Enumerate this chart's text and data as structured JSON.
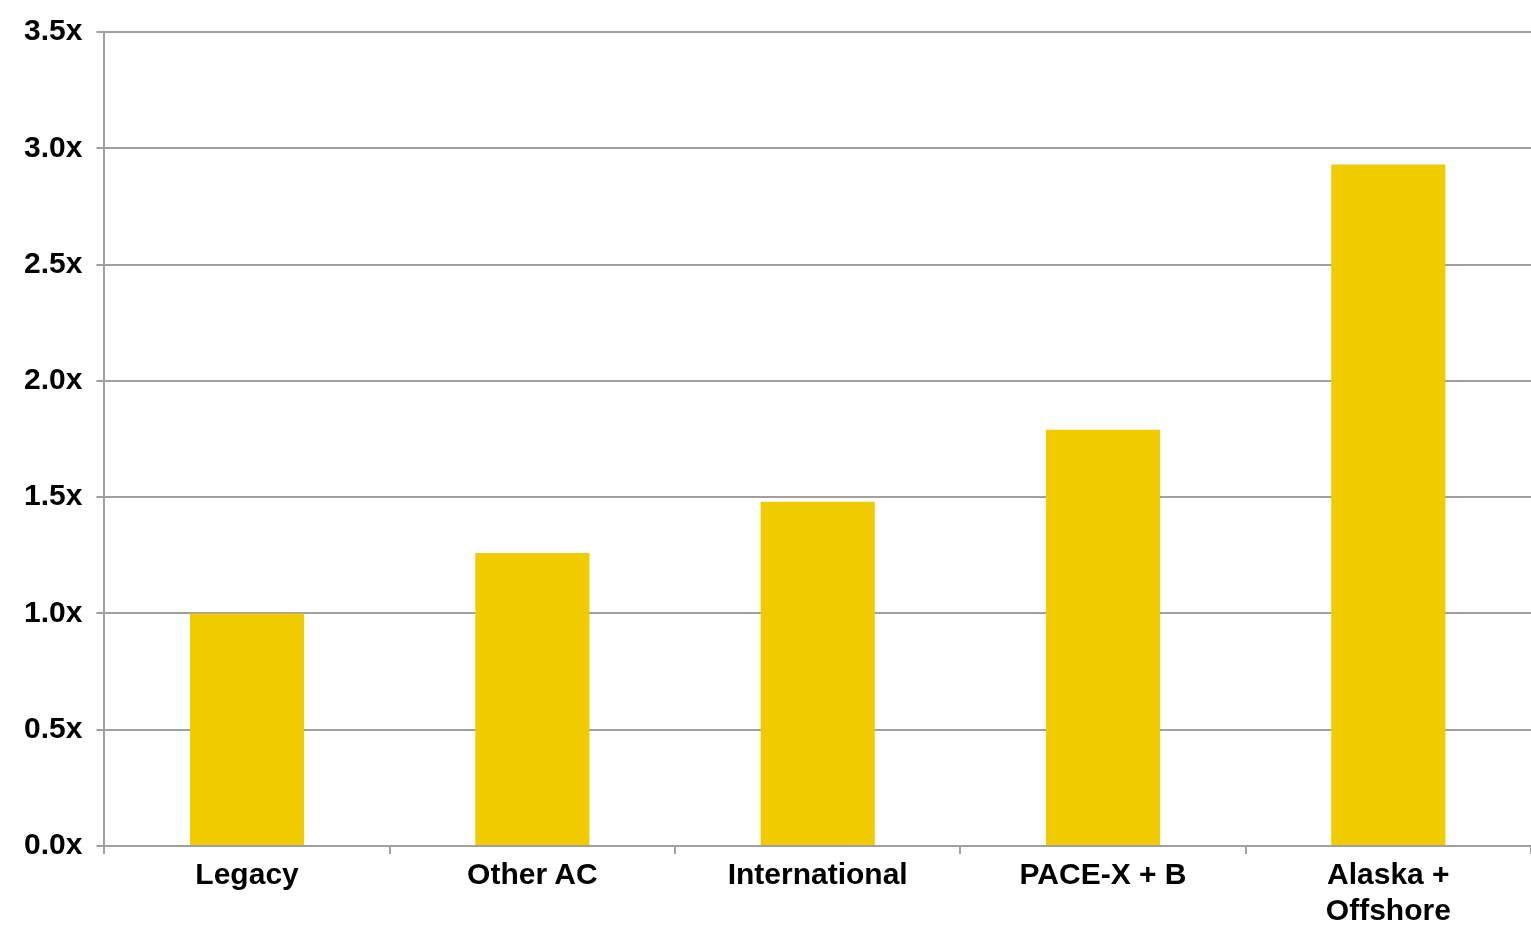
{
  "chart_data": {
    "type": "bar",
    "categories": [
      "Legacy",
      "Other AC",
      "International",
      "PACE-X + B",
      "Alaska + Offshore"
    ],
    "values": [
      1.0,
      1.26,
      1.48,
      1.79,
      2.93
    ],
    "color": "#f0cb00",
    "ylim": [
      0,
      3.5
    ],
    "yticks": [
      {
        "value": 0,
        "label": "0.0x"
      },
      {
        "value": 0.5,
        "label": "0.5x"
      },
      {
        "value": 1,
        "label": "1.0x"
      },
      {
        "value": 1.5,
        "label": "1.5x"
      },
      {
        "value": 2,
        "label": "2.0x"
      },
      {
        "value": 2.5,
        "label": "2.5x"
      },
      {
        "value": 3,
        "label": "3.0x"
      },
      {
        "value": 3.5,
        "label": "3.5x"
      }
    ],
    "grid": "y"
  }
}
